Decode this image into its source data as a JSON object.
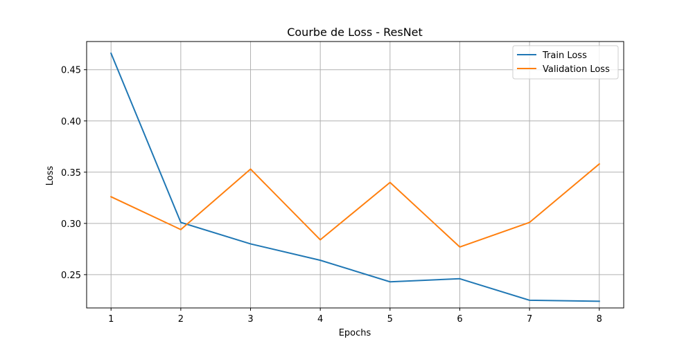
{
  "chart_data": {
    "type": "line",
    "title": "Courbe de Loss - ResNet",
    "xlabel": "Epochs",
    "ylabel": "Loss",
    "x": [
      1,
      2,
      3,
      4,
      5,
      6,
      7,
      8
    ],
    "xlim": [
      0.65,
      8.35
    ],
    "ylim": [
      0.2175,
      0.4775
    ],
    "xticks": [
      1,
      2,
      3,
      4,
      5,
      6,
      7,
      8
    ],
    "xtick_labels": [
      "1",
      "2",
      "3",
      "4",
      "5",
      "6",
      "7",
      "8"
    ],
    "yticks": [
      0.25,
      0.3,
      0.35,
      0.4,
      0.45
    ],
    "ytick_labels": [
      "0.25",
      "0.30",
      "0.35",
      "0.40",
      "0.45"
    ],
    "grid": true,
    "legend_position": "top-right",
    "series": [
      {
        "name": "Train Loss",
        "color": "#1f77b4",
        "values": [
          0.466,
          0.301,
          0.28,
          0.264,
          0.243,
          0.246,
          0.225,
          0.224
        ]
      },
      {
        "name": "Validation Loss",
        "color": "#ff7f0e",
        "values": [
          0.326,
          0.294,
          0.353,
          0.284,
          0.34,
          0.277,
          0.301,
          0.358
        ]
      }
    ]
  }
}
